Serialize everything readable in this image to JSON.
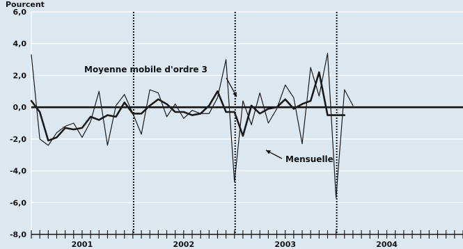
{
  "chart_data": {
    "type": "line",
    "unit_label": "Pourcent",
    "ylim": [
      -8.0,
      6.0
    ],
    "y_ticks": [
      {
        "value": 6.0,
        "label": "6,0"
      },
      {
        "value": 4.0,
        "label": "4,0"
      },
      {
        "value": 2.0,
        "label": "2,0"
      },
      {
        "value": 0.0,
        "label": "0,0"
      },
      {
        "value": -2.0,
        "label": "-2,0"
      },
      {
        "value": -4.0,
        "label": "-4,0"
      },
      {
        "value": -6.0,
        "label": "-6,0"
      },
      {
        "value": -8.0,
        "label": "-8,0"
      }
    ],
    "x_labels": [
      "2001",
      "2002",
      "2003",
      "2004"
    ],
    "months_total": 51,
    "year_boundaries": [
      12,
      24,
      36
    ],
    "grid": true,
    "background": "#dde7f0",
    "line_color": "#1a1a1a",
    "series": [
      {
        "name": "Mensuelle",
        "stroke": 1.2,
        "values": [
          3.3,
          -2.0,
          -2.4,
          -1.6,
          -1.2,
          -1.0,
          -1.9,
          -0.9,
          1.0,
          -2.4,
          0.1,
          0.8,
          -0.4,
          -1.7,
          1.1,
          0.9,
          -0.6,
          0.2,
          -0.7,
          -0.2,
          -0.4,
          -0.4,
          0.6,
          3.0,
          -4.7,
          0.4,
          -1.1,
          0.9,
          -1.0,
          -0.1,
          1.4,
          0.6,
          -2.3,
          2.5,
          0.7,
          3.4,
          -5.7,
          1.1,
          0.1
        ]
      },
      {
        "name": "Moyenne mobile d'ordre 3",
        "stroke": 2.6,
        "values": [
          0.4,
          -0.3,
          -2.1,
          -1.9,
          -1.3,
          -1.4,
          -1.3,
          -0.6,
          -0.8,
          -0.5,
          -0.6,
          0.3,
          -0.4,
          -0.4,
          0.1,
          0.5,
          0.2,
          -0.3,
          -0.3,
          -0.5,
          -0.4,
          0.1,
          1.0,
          -0.3,
          -0.3,
          -1.8,
          0.1,
          -0.4,
          -0.1,
          0.0,
          0.5,
          -0.1,
          0.2,
          0.4,
          2.2,
          -0.5,
          -0.5,
          -0.5
        ]
      }
    ],
    "annotations": [
      {
        "text": "Moyenne mobile d'ordre 3"
      },
      {
        "text": "Mensuelle"
      }
    ]
  }
}
